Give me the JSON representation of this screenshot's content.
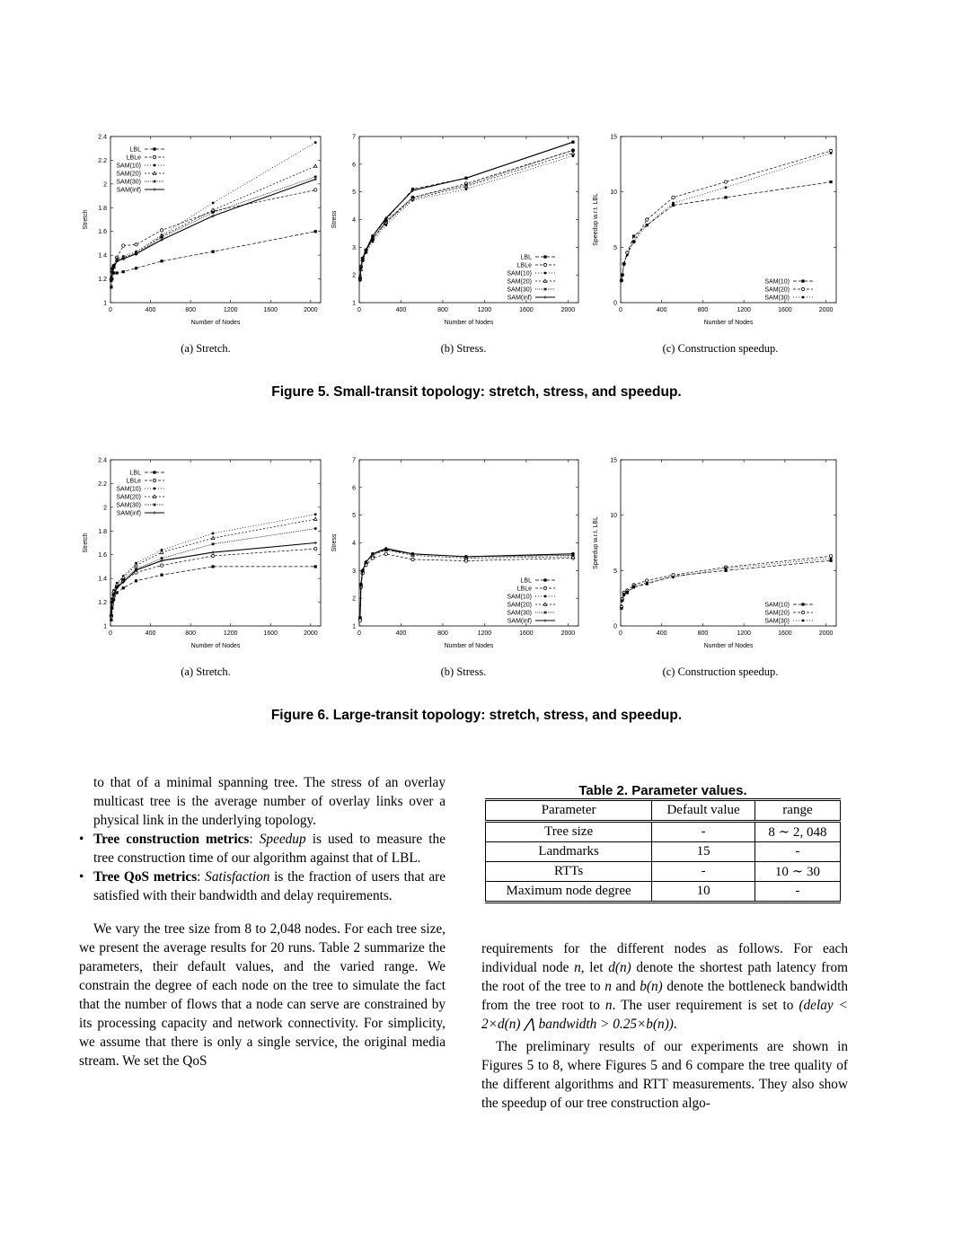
{
  "figure5": {
    "caption": "Figure 5. Small-transit topology: stretch, stress, and speedup.",
    "subcaptions": [
      "(a) Stretch.",
      "(b) Stress.",
      "(c) Construction speedup."
    ]
  },
  "figure6": {
    "caption": "Figure 6. Large-transit topology: stretch, stress, and speedup.",
    "subcaptions": [
      "(a) Stretch.",
      "(b) Stress.",
      "(c) Construction speedup."
    ]
  },
  "chart_data": [
    {
      "type": "line",
      "xlabel": "Number of Nodes",
      "ylabel": "Stretch",
      "xlim": [
        0,
        2100
      ],
      "ylim": [
        1,
        2.4
      ],
      "xticks": [
        "0",
        "400",
        "800",
        "1200",
        "1600",
        "2000"
      ],
      "yticks": [
        "1",
        "1.2",
        "1.4",
        "1.6",
        "1.8",
        "2",
        "2.2",
        "2.4"
      ],
      "legend_position": "top-left",
      "x": [
        8,
        16,
        32,
        64,
        128,
        256,
        512,
        1024,
        2048
      ],
      "series": [
        {
          "name": "LBL",
          "values": [
            1.13,
            1.2,
            1.25,
            1.25,
            1.26,
            1.29,
            1.35,
            1.43,
            1.6
          ]
        },
        {
          "name": "LBLe",
          "values": [
            1.2,
            1.28,
            1.31,
            1.38,
            1.48,
            1.49,
            1.61,
            1.77,
            1.95
          ]
        },
        {
          "name": "SAM(10)",
          "values": [
            1.22,
            1.29,
            1.31,
            1.37,
            1.39,
            1.43,
            1.57,
            1.84,
            2.35
          ]
        },
        {
          "name": "SAM(20)",
          "values": [
            1.2,
            1.27,
            1.3,
            1.36,
            1.38,
            1.42,
            1.56,
            1.78,
            2.15
          ]
        },
        {
          "name": "SAM(30)",
          "values": [
            1.19,
            1.26,
            1.3,
            1.35,
            1.37,
            1.41,
            1.55,
            1.76,
            2.06
          ]
        },
        {
          "name": "SAM(inf)",
          "values": [
            1.18,
            1.26,
            1.29,
            1.35,
            1.37,
            1.41,
            1.53,
            1.73,
            2.04
          ]
        }
      ]
    },
    {
      "type": "line",
      "xlabel": "Number of Nodes",
      "ylabel": "Stress",
      "xlim": [
        0,
        2100
      ],
      "ylim": [
        1,
        7
      ],
      "xticks": [
        "0",
        "400",
        "800",
        "1200",
        "1600",
        "2000"
      ],
      "yticks": [
        "1",
        "2",
        "3",
        "4",
        "5",
        "6",
        "7"
      ],
      "legend_position": "bottom-right",
      "x": [
        8,
        16,
        32,
        64,
        128,
        256,
        512,
        1024,
        2048
      ],
      "series": [
        {
          "name": "LBL",
          "values": [
            1.9,
            2.3,
            2.6,
            2.9,
            3.4,
            4.0,
            5.1,
            5.5,
            6.8
          ]
        },
        {
          "name": "LBLe",
          "values": [
            1.9,
            2.3,
            2.6,
            2.9,
            3.3,
            3.9,
            4.8,
            5.3,
            6.5
          ]
        },
        {
          "name": "SAM(10)",
          "values": [
            1.8,
            2.2,
            2.5,
            2.8,
            3.2,
            3.8,
            4.7,
            5.1,
            6.3
          ]
        },
        {
          "name": "SAM(20)",
          "values": [
            1.85,
            2.2,
            2.55,
            2.85,
            3.3,
            3.9,
            4.75,
            5.2,
            6.4
          ]
        },
        {
          "name": "SAM(30)",
          "values": [
            1.85,
            2.25,
            2.55,
            2.85,
            3.3,
            3.95,
            4.8,
            5.25,
            6.5
          ]
        },
        {
          "name": "SAM(inf)",
          "values": [
            1.9,
            2.3,
            2.6,
            2.9,
            3.4,
            4.05,
            5.05,
            5.5,
            6.8
          ]
        }
      ]
    },
    {
      "type": "line",
      "xlabel": "Number of Nodes",
      "ylabel": "Speedup w.r.t. LBL",
      "xlim": [
        0,
        2100
      ],
      "ylim": [
        0,
        15
      ],
      "xticks": [
        "0",
        "400",
        "800",
        "1200",
        "1600",
        "2000"
      ],
      "yticks": [
        "0",
        "5",
        "10",
        "15"
      ],
      "legend_position": "bottom-right",
      "x": [
        8,
        16,
        32,
        64,
        128,
        256,
        512,
        1024,
        2048
      ],
      "series": [
        {
          "name": "SAM(10)",
          "values": [
            2.0,
            2.5,
            3.5,
            4.5,
            6.0,
            7.0,
            8.8,
            9.5,
            10.9
          ]
        },
        {
          "name": "SAM(20)",
          "values": [
            2.0,
            2.5,
            3.5,
            4.5,
            5.5,
            7.5,
            9.5,
            10.9,
            13.7
          ]
        },
        {
          "name": "SAM(30)",
          "values": [
            2.0,
            2.5,
            3.5,
            4.3,
            5.5,
            7.0,
            9.0,
            10.4,
            13.5
          ]
        }
      ]
    },
    {
      "type": "line",
      "xlabel": "Number of Nodes",
      "ylabel": "Stretch",
      "xlim": [
        0,
        2100
      ],
      "ylim": [
        1,
        2.4
      ],
      "xticks": [
        "0",
        "400",
        "800",
        "1200",
        "1600",
        "2000"
      ],
      "yticks": [
        "1",
        "1.2",
        "1.4",
        "1.6",
        "1.8",
        "2",
        "2.2",
        "2.4"
      ],
      "legend_position": "top-left",
      "x": [
        8,
        16,
        32,
        64,
        128,
        256,
        512,
        1024,
        2048
      ],
      "series": [
        {
          "name": "LBL",
          "values": [
            1.05,
            1.15,
            1.22,
            1.28,
            1.32,
            1.38,
            1.43,
            1.5,
            1.5
          ]
        },
        {
          "name": "LBLe",
          "values": [
            1.08,
            1.18,
            1.26,
            1.33,
            1.38,
            1.45,
            1.51,
            1.59,
            1.65
          ]
        },
        {
          "name": "SAM(10)",
          "values": [
            1.12,
            1.23,
            1.3,
            1.36,
            1.42,
            1.53,
            1.64,
            1.78,
            1.94
          ]
        },
        {
          "name": "SAM(20)",
          "values": [
            1.1,
            1.21,
            1.29,
            1.35,
            1.41,
            1.51,
            1.62,
            1.74,
            1.9
          ]
        },
        {
          "name": "SAM(30)",
          "values": [
            1.09,
            1.2,
            1.27,
            1.33,
            1.39,
            1.48,
            1.57,
            1.69,
            1.82
          ]
        },
        {
          "name": "SAM(inf)",
          "values": [
            1.08,
            1.19,
            1.26,
            1.32,
            1.37,
            1.47,
            1.55,
            1.62,
            1.7
          ]
        }
      ]
    },
    {
      "type": "line",
      "xlabel": "Number of Nodes",
      "ylabel": "Stress",
      "xlim": [
        0,
        2100
      ],
      "ylim": [
        1,
        7
      ],
      "xticks": [
        "0",
        "400",
        "800",
        "1200",
        "1600",
        "2000"
      ],
      "yticks": [
        "1",
        "2",
        "3",
        "4",
        "5",
        "6",
        "7"
      ],
      "legend_position": "bottom-right",
      "x": [
        8,
        16,
        32,
        64,
        128,
        256,
        512,
        1024,
        2048
      ],
      "series": [
        {
          "name": "LBL",
          "values": [
            1.3,
            2.5,
            3.0,
            3.3,
            3.6,
            3.75,
            3.6,
            3.5,
            3.6
          ]
        },
        {
          "name": "LBLe",
          "values": [
            1.2,
            2.4,
            2.9,
            3.2,
            3.45,
            3.6,
            3.4,
            3.35,
            3.45
          ]
        },
        {
          "name": "SAM(10)",
          "values": [
            1.3,
            2.5,
            3.0,
            3.3,
            3.6,
            3.8,
            3.6,
            3.5,
            3.55
          ]
        },
        {
          "name": "SAM(20)",
          "values": [
            1.3,
            2.5,
            3.0,
            3.3,
            3.55,
            3.75,
            3.55,
            3.45,
            3.5
          ]
        },
        {
          "name": "SAM(30)",
          "values": [
            1.3,
            2.5,
            3.0,
            3.3,
            3.6,
            3.75,
            3.6,
            3.5,
            3.55
          ]
        },
        {
          "name": "SAM(inf)",
          "values": [
            1.3,
            2.5,
            3.0,
            3.3,
            3.6,
            3.8,
            3.6,
            3.5,
            3.6
          ]
        }
      ]
    },
    {
      "type": "line",
      "xlabel": "Number of Nodes",
      "ylabel": "Speedup w.r.t. LBL",
      "xlim": [
        0,
        2100
      ],
      "ylim": [
        0,
        15
      ],
      "xticks": [
        "0",
        "400",
        "800",
        "1200",
        "1600",
        "2000"
      ],
      "yticks": [
        "0",
        "5",
        "10",
        "15"
      ],
      "legend_position": "bottom-right",
      "x": [
        8,
        16,
        32,
        64,
        128,
        256,
        512,
        1024,
        2048
      ],
      "series": [
        {
          "name": "SAM(10)",
          "values": [
            1.6,
            2.3,
            2.8,
            3.0,
            3.5,
            3.8,
            4.5,
            5.0,
            5.9
          ]
        },
        {
          "name": "SAM(20)",
          "values": [
            1.7,
            2.4,
            3.0,
            3.2,
            3.7,
            4.1,
            4.6,
            5.3,
            6.3
          ]
        },
        {
          "name": "SAM(30)",
          "values": [
            1.6,
            2.3,
            2.9,
            3.1,
            3.6,
            3.9,
            4.4,
            5.2,
            6.1
          ]
        }
      ]
    }
  ],
  "left_col": {
    "cont_text": "to that of a minimal spanning tree. The stress of an overlay multicast tree is the average number of overlay links over a physical link in the underlying topology.",
    "b1_bold": "Tree construction metrics",
    "b1_sep": ": ",
    "b1_em": "Speedup",
    "b1_rest": " is used to measure the tree construction time of our algorithm against that of LBL.",
    "b2_bold": "Tree QoS metrics",
    "b2_sep": ": ",
    "b2_em": "Satisfaction",
    "b2_rest": " is the fraction of users that are satisfied with their bandwidth and delay requirements.",
    "para": "We vary the tree size from 8 to 2,048 nodes. For each tree size, we present the average results for 20 runs. Table 2 summarize the parameters, their default values, and the varied range. We constrain the degree of each node on the tree to simulate the fact that the number of flows that a node can serve are constrained by its processing capacity and network connectivity. For simplicity, we assume that there is only a single service, the original media stream. We set the QoS"
  },
  "table2": {
    "caption": "Table 2. Parameter values.",
    "headers": [
      "Parameter",
      "Default value",
      "range"
    ],
    "rows": [
      [
        "Tree size",
        "-",
        "8 ∼ 2, 048"
      ],
      [
        "Landmarks",
        "15",
        "-"
      ],
      [
        "RTTs",
        "-",
        "10 ∼ 30"
      ],
      [
        "Maximum node degree",
        "10",
        "-"
      ]
    ]
  },
  "right_col": {
    "p1_a": "requirements for the different nodes as follows. For each individual node ",
    "p1_n1": "n",
    "p1_b": ", let ",
    "p1_dn": "d(n)",
    "p1_c": " denote the shortest path latency from the root of the tree to ",
    "p1_n2": "n",
    "p1_d": " and ",
    "p1_bn": "b(n)",
    "p1_e": " denote the bottleneck bandwidth from the tree root to ",
    "p1_n3": "n",
    "p1_f": ". The user requirement is set to ",
    "p1_formula": "(delay < 2×d(n) ⋀ bandwidth > 0.25×b(n))",
    "p1_g": ".",
    "p2": "The preliminary results of our experiments are shown in Figures 5 to 8, where Figures 5 and 6 compare the tree quality of the different algorithms and RTT measurements. They also show the speedup of our tree construction algo-"
  }
}
